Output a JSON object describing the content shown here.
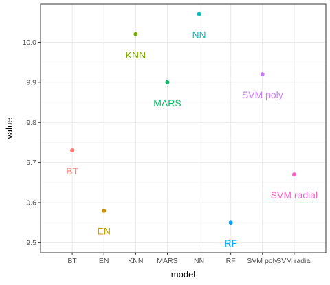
{
  "chart_data": {
    "type": "scatter",
    "title": "",
    "xlabel": "model",
    "ylabel": "value",
    "ylim": [
      9.475,
      10.095
    ],
    "yticks": [
      9.5,
      9.6,
      9.7,
      9.8,
      9.9,
      10.0
    ],
    "ytick_labels": [
      "9.5",
      "9.6",
      "9.7",
      "9.8",
      "9.9",
      "10.0"
    ],
    "categories": [
      "BT",
      "EN",
      "KNN",
      "MARS",
      "NN",
      "RF",
      "SVM poly",
      "SVM radial"
    ],
    "points": [
      {
        "model": "BT",
        "value": 9.73,
        "label": "BT",
        "color": "#F8766D"
      },
      {
        "model": "EN",
        "value": 9.58,
        "label": "EN",
        "color": "#CD9600"
      },
      {
        "model": "KNN",
        "value": 10.02,
        "label": "KNN",
        "color": "#7CAE00"
      },
      {
        "model": "MARS",
        "value": 9.9,
        "label": "MARS",
        "color": "#00BE67"
      },
      {
        "model": "NN",
        "value": 10.07,
        "label": "NN",
        "color": "#00BFC4"
      },
      {
        "model": "RF",
        "value": 9.55,
        "label": "RF",
        "color": "#00A9FF"
      },
      {
        "model": "SVM poly",
        "value": 9.92,
        "label": "SVM poly",
        "color": "#C77CFF"
      },
      {
        "model": "SVM radial",
        "value": 9.67,
        "label": "SVM radial",
        "color": "#FF61CC"
      }
    ],
    "grid": true,
    "legend": "none"
  }
}
